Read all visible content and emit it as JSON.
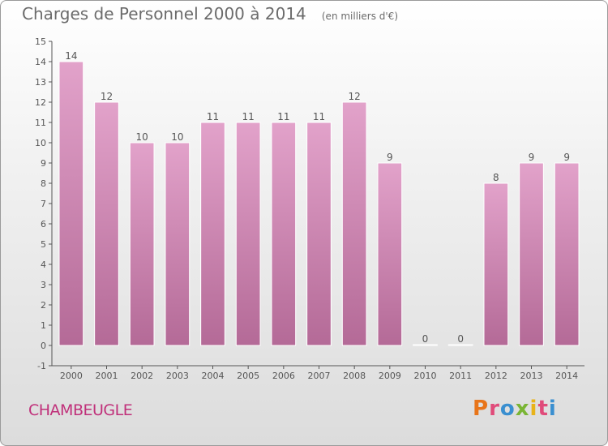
{
  "header": {
    "title": "Charges de Personnel 2000 à 2014",
    "unit": "(en milliers d'€)"
  },
  "footer": {
    "commune": "CHAMBEUGLE",
    "brand": "Proxiti"
  },
  "colors": {
    "bar_top": "#e2a2ca",
    "bar_bottom": "#b46a97",
    "commune": "#c0307a",
    "brand_letters": [
      "#e8751a",
      "#e04b7a",
      "#3a8fd0",
      "#7ab534",
      "#e8b31a",
      "#e04b7a",
      "#3a8fd0"
    ]
  },
  "chart_data": {
    "type": "bar",
    "categories": [
      "2000",
      "2001",
      "2002",
      "2003",
      "2004",
      "2005",
      "2006",
      "2007",
      "2008",
      "2009",
      "2010",
      "2011",
      "2012",
      "2013",
      "2014"
    ],
    "values": [
      14,
      12,
      10,
      10,
      11,
      11,
      11,
      11,
      12,
      9,
      0,
      0,
      8,
      9,
      9
    ],
    "data_labels": [
      "14",
      "12",
      "10",
      "10",
      "11",
      "11",
      "11",
      "11",
      "12",
      "9",
      "0",
      "0",
      "8",
      "9",
      "9"
    ],
    "y_ticks": [
      "-1",
      "0",
      "1",
      "2",
      "3",
      "4",
      "5",
      "6",
      "7",
      "8",
      "9",
      "10",
      "11",
      "12",
      "13",
      "14",
      "15"
    ],
    "ylim": [
      -1,
      15
    ],
    "grid": false,
    "title": "Charges de Personnel 2000 à 2014"
  }
}
